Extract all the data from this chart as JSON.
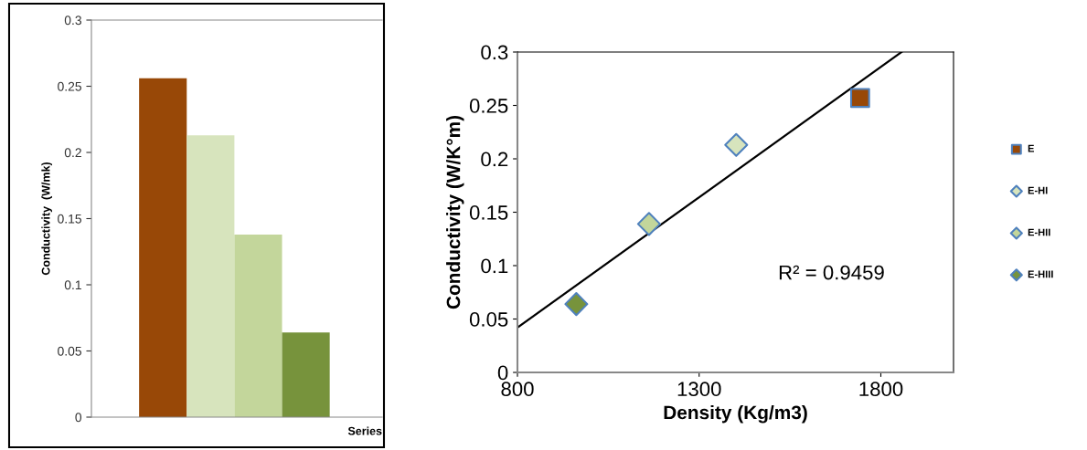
{
  "chart_data": [
    {
      "type": "bar",
      "ylabel": "Conductivity  (W/mk)",
      "xlabel": "Series",
      "categories": [
        null,
        null,
        null,
        null
      ],
      "values": [
        0.256,
        0.213,
        0.138,
        0.064
      ],
      "colors": [
        "#984807",
        "#d7e4bd",
        "#c3d69b",
        "#77933c"
      ],
      "ylim": [
        0,
        0.3
      ],
      "yticks": [
        0,
        0.05,
        0.1,
        0.15,
        0.2,
        0.25,
        0.3
      ],
      "grid": false
    },
    {
      "type": "scatter",
      "xlabel": "Density (Kg/m3)",
      "ylabel": "Conductivity (W/K°m)",
      "xlim": [
        800,
        2000
      ],
      "xticks": [
        800,
        1300,
        1800
      ],
      "ylim": [
        0,
        0.3
      ],
      "yticks": [
        0,
        0.05,
        0.1,
        0.15,
        0.2,
        0.25,
        0.3
      ],
      "grid": false,
      "legend": "right",
      "annotations": [
        "R² = 0.9459"
      ],
      "series": [
        {
          "name": "E",
          "color": "#984807",
          "marker": "square",
          "x": [
            1743
          ],
          "values": [
            0.257
          ]
        },
        {
          "name": "E-HI",
          "color": "#d7e4bd",
          "marker": "diamond",
          "x": [
            1402
          ],
          "values": [
            0.213
          ]
        },
        {
          "name": "E-HII",
          "color": "#c3d69b",
          "marker": "diamond",
          "x": [
            1162
          ],
          "values": [
            0.139
          ]
        },
        {
          "name": "E-HIII",
          "color": "#77933c",
          "marker": "diamond",
          "x": [
            962
          ],
          "values": [
            0.064
          ]
        },
        {
          "type": "line",
          "color": "#000000",
          "x": [
            800,
            1857
          ],
          "values": [
            0.042,
            0.3
          ]
        }
      ]
    }
  ]
}
